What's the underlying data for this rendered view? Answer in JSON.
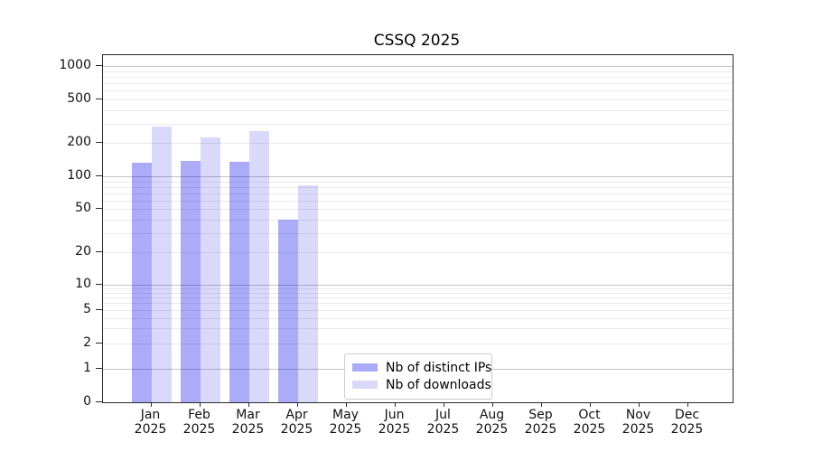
{
  "title": "CSSQ 2025",
  "chart_data": {
    "type": "bar",
    "title": "CSSQ 2025",
    "categories": [
      "Jan\n2025",
      "Feb\n2025",
      "Mar\n2025",
      "Apr\n2025",
      "May\n2025",
      "Jun\n2025",
      "Jul\n2025",
      "Aug\n2025",
      "Sep\n2025",
      "Oct\n2025",
      "Nov\n2025",
      "Dec\n2025"
    ],
    "series": [
      {
        "key": "ips",
        "name": "Nb of distinct IPs",
        "color": "rgba(0,0,230,0.33)",
        "values": [
          134,
          138,
          135,
          40,
          0,
          0,
          0,
          0,
          0,
          0,
          0,
          0
        ]
      },
      {
        "key": "downloads",
        "name": "Nb of downloads",
        "color": "rgba(0,0,215,0.15)",
        "values": [
          282,
          225,
          257,
          83,
          0,
          0,
          0,
          0,
          0,
          0,
          0,
          0
        ]
      }
    ],
    "xlabel": "",
    "ylabel": "",
    "yscale": "symlog",
    "ylim": [
      0,
      1000
    ],
    "y_ticks": [
      0,
      1,
      2,
      5,
      10,
      20,
      50,
      100,
      200,
      500,
      1000
    ],
    "grid": "both",
    "legend_position": "lower center"
  },
  "colors": {
    "bar_distinct_ips": "rgba(0,0,230,0.33)",
    "bar_downloads": "rgba(0,0,215,0.15)",
    "grid_major": "#c3c3c3",
    "grid_minor": "#eaeaea",
    "axis": "#2b2b2b",
    "legend_border": "#cccccc"
  }
}
